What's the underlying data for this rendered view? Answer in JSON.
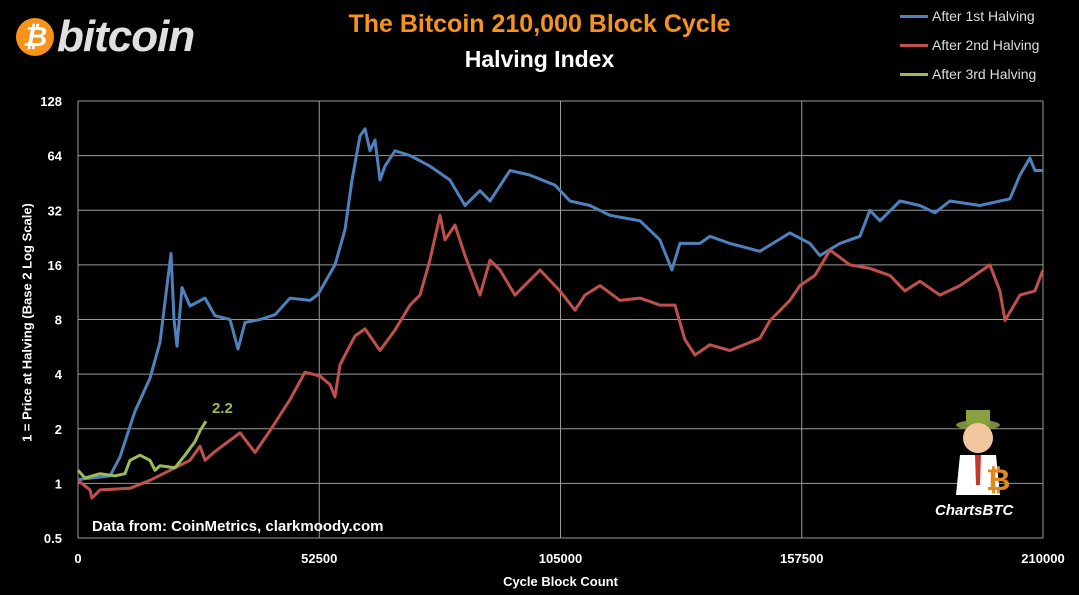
{
  "logo": {
    "symbol": "₿",
    "text": "bitcoin"
  },
  "title": "The Bitcoin 210,000 Block Cycle",
  "subtitle": "Halving Index",
  "credit": "Data from:  CoinMetrics, clarkmoody.com",
  "brand": "ChartsBTC",
  "chart_data": {
    "type": "line",
    "xlabel": "Cycle Block Count",
    "ylabel": "1 = Price at Halving (Base 2 Log Scale)",
    "xlim": [
      0,
      210000
    ],
    "ylim": [
      0.5,
      128
    ],
    "yscale": "log2",
    "grid": true,
    "legend_placement": "top-right",
    "xticks": [
      "0",
      "52500",
      "105000",
      "157500",
      "210000"
    ],
    "xtick_values": [
      0,
      52500,
      105000,
      157500,
      210000
    ],
    "yticks": [
      "0.5",
      "1",
      "2",
      "4",
      "8",
      "16",
      "32",
      "64",
      "128"
    ],
    "ytick_values": [
      0.5,
      1,
      2,
      4,
      8,
      16,
      32,
      64,
      128
    ],
    "annotation": {
      "text": "2.2",
      "x": 27850,
      "y": 2.2,
      "color": "#9bbb59"
    },
    "series": [
      {
        "name": "After 1st Halving",
        "color": "#4f81bd",
        "points": [
          [
            0,
            1.05
          ],
          [
            6960,
            1.1
          ],
          [
            9140,
            1.4
          ],
          [
            12400,
            2.5
          ],
          [
            15670,
            3.8
          ],
          [
            17840,
            6
          ],
          [
            18930,
            10
          ],
          [
            20240,
            18.5
          ],
          [
            20890,
            8
          ],
          [
            21540,
            5.7
          ],
          [
            22630,
            12
          ],
          [
            24370,
            9.5
          ],
          [
            27640,
            10.5
          ],
          [
            29810,
            8.4
          ],
          [
            33070,
            8
          ],
          [
            34820,
            5.5
          ],
          [
            36340,
            7.7
          ],
          [
            39600,
            8
          ],
          [
            42870,
            8.5
          ],
          [
            46130,
            10.5
          ],
          [
            50480,
            10.2
          ],
          [
            52220,
            11
          ],
          [
            55920,
            16
          ],
          [
            58100,
            25
          ],
          [
            59620,
            47
          ],
          [
            61360,
            82
          ],
          [
            62450,
            90
          ],
          [
            63540,
            68
          ],
          [
            64630,
            78
          ],
          [
            65720,
            47
          ],
          [
            66800,
            56
          ],
          [
            68980,
            68
          ],
          [
            72240,
            64
          ],
          [
            76590,
            56
          ],
          [
            80940,
            47
          ],
          [
            84210,
            34
          ],
          [
            87480,
            41
          ],
          [
            89650,
            36
          ],
          [
            94000,
            53
          ],
          [
            98360,
            50
          ],
          [
            103800,
            44
          ],
          [
            107060,
            36
          ],
          [
            111410,
            34
          ],
          [
            115760,
            30
          ],
          [
            122290,
            28
          ],
          [
            126640,
            22
          ],
          [
            129250,
            15
          ],
          [
            130990,
            21
          ],
          [
            135340,
            21
          ],
          [
            137520,
            23
          ],
          [
            141870,
            21
          ],
          [
            148400,
            19
          ],
          [
            154920,
            24
          ],
          [
            159280,
            21
          ],
          [
            161460,
            18
          ],
          [
            165810,
            21
          ],
          [
            170160,
            23
          ],
          [
            172340,
            32
          ],
          [
            174520,
            28
          ],
          [
            178870,
            36
          ],
          [
            183220,
            34
          ],
          [
            186480,
            31
          ],
          [
            189750,
            36
          ],
          [
            196270,
            34
          ],
          [
            202800,
            37
          ],
          [
            204980,
            50
          ],
          [
            207150,
            62
          ],
          [
            208240,
            53
          ],
          [
            210000,
            53
          ]
        ]
      },
      {
        "name": "After 2nd Halving",
        "color": "#c0504d",
        "points": [
          [
            0,
            1.04
          ],
          [
            2610,
            0.92
          ],
          [
            3050,
            0.83
          ],
          [
            4790,
            0.92
          ],
          [
            11320,
            0.94
          ],
          [
            15670,
            1.04
          ],
          [
            20020,
            1.18
          ],
          [
            24370,
            1.34
          ],
          [
            26550,
            1.6
          ],
          [
            27640,
            1.34
          ],
          [
            29810,
            1.5
          ],
          [
            35250,
            1.9
          ],
          [
            38520,
            1.48
          ],
          [
            41780,
            1.95
          ],
          [
            46130,
            2.9
          ],
          [
            49400,
            4.1
          ],
          [
            52660,
            3.9
          ],
          [
            54840,
            3.5
          ],
          [
            55920,
            3.0
          ],
          [
            57010,
            4.5
          ],
          [
            60280,
            6.5
          ],
          [
            62450,
            7.1
          ],
          [
            65720,
            5.4
          ],
          [
            68980,
            7
          ],
          [
            72240,
            9.6
          ],
          [
            74420,
            10.9
          ],
          [
            76590,
            17
          ],
          [
            78770,
            30
          ],
          [
            79860,
            22
          ],
          [
            82040,
            26.5
          ],
          [
            84210,
            18
          ],
          [
            87480,
            10.9
          ],
          [
            89650,
            17
          ],
          [
            91830,
            15
          ],
          [
            95090,
            10.9
          ],
          [
            100530,
            15
          ],
          [
            104880,
            11.5
          ],
          [
            108150,
            9
          ],
          [
            110320,
            10.9
          ],
          [
            113590,
            12.3
          ],
          [
            117940,
            10.2
          ],
          [
            122290,
            10.5
          ],
          [
            126640,
            9.6
          ],
          [
            129900,
            9.6
          ],
          [
            132080,
            6.2
          ],
          [
            134260,
            5.1
          ],
          [
            137520,
            5.8
          ],
          [
            141870,
            5.4
          ],
          [
            148400,
            6.3
          ],
          [
            150580,
            7.9
          ],
          [
            154920,
            10.2
          ],
          [
            157100,
            12.3
          ],
          [
            160370,
            14
          ],
          [
            163640,
            19.3
          ],
          [
            167990,
            16
          ],
          [
            172340,
            15.3
          ],
          [
            176690,
            14
          ],
          [
            179950,
            11.5
          ],
          [
            183220,
            13
          ],
          [
            187570,
            10.9
          ],
          [
            191920,
            12.3
          ],
          [
            198450,
            16
          ],
          [
            200630,
            11.5
          ],
          [
            201720,
            7.9
          ],
          [
            204980,
            10.9
          ],
          [
            208240,
            11.5
          ],
          [
            210000,
            15
          ]
        ]
      },
      {
        "name": "After 3rd Halving",
        "color": "#9bbb59",
        "points": [
          [
            0,
            1.18
          ],
          [
            1520,
            1.07
          ],
          [
            4790,
            1.13
          ],
          [
            8050,
            1.1
          ],
          [
            10230,
            1.13
          ],
          [
            11320,
            1.34
          ],
          [
            13490,
            1.43
          ],
          [
            15670,
            1.34
          ],
          [
            16760,
            1.18
          ],
          [
            17840,
            1.25
          ],
          [
            21110,
            1.22
          ],
          [
            23280,
            1.43
          ],
          [
            25460,
            1.7
          ],
          [
            26550,
            1.95
          ],
          [
            27850,
            2.2
          ]
        ]
      }
    ]
  }
}
